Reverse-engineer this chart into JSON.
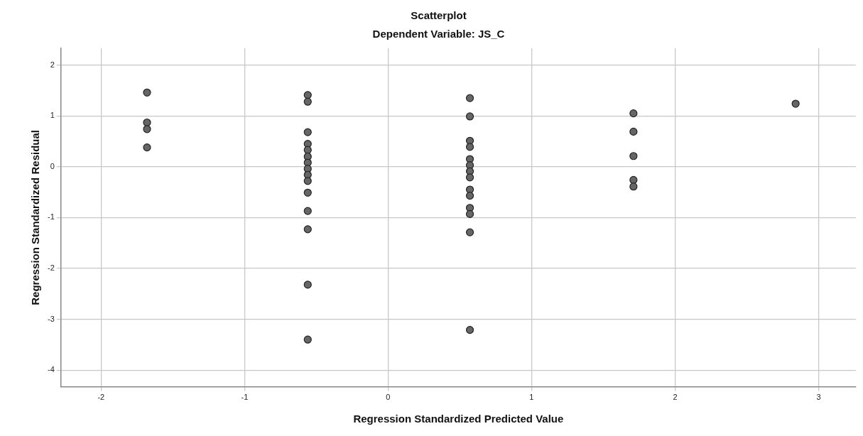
{
  "chart_data": {
    "type": "scatter",
    "title": "Scatterplot",
    "subtitle": "Dependent Variable: JS_C",
    "xlabel": "Regression Standardized Predicted Value",
    "ylabel": "Regression Standardized Residual",
    "x": [
      -1.68,
      -1.68,
      -1.68,
      -1.68,
      -0.56,
      -0.56,
      -0.56,
      -0.56,
      -0.56,
      -0.56,
      -0.56,
      -0.56,
      -0.56,
      -0.56,
      -0.56,
      -0.56,
      -0.56,
      -0.56,
      -0.56,
      0.57,
      0.57,
      0.57,
      0.57,
      0.57,
      0.57,
      0.57,
      0.57,
      0.57,
      0.57,
      0.57,
      0.57,
      0.57,
      0.57,
      1.71,
      1.71,
      1.71,
      1.71,
      1.71,
      2.84
    ],
    "values": [
      1.46,
      0.87,
      0.74,
      0.38,
      1.41,
      1.28,
      0.68,
      0.45,
      0.33,
      0.2,
      0.08,
      -0.04,
      -0.16,
      -0.28,
      -0.51,
      -0.87,
      -1.23,
      -2.32,
      -3.4,
      1.35,
      0.99,
      0.51,
      0.39,
      0.15,
      0.03,
      -0.09,
      -0.21,
      -0.45,
      -0.57,
      -0.81,
      -0.93,
      -1.29,
      -3.21,
      1.05,
      0.69,
      0.21,
      -0.26,
      -0.39,
      1.24
    ],
    "color": "#666666",
    "marker": "circle",
    "grid": true,
    "xlim": [
      -2.28,
      3.26
    ],
    "xticks": [
      -2,
      -1,
      0,
      1,
      2,
      3
    ],
    "ylim": [
      -4.33,
      2.33
    ],
    "yticks": [
      -4,
      -3,
      -2,
      -1,
      0,
      1,
      2
    ]
  }
}
